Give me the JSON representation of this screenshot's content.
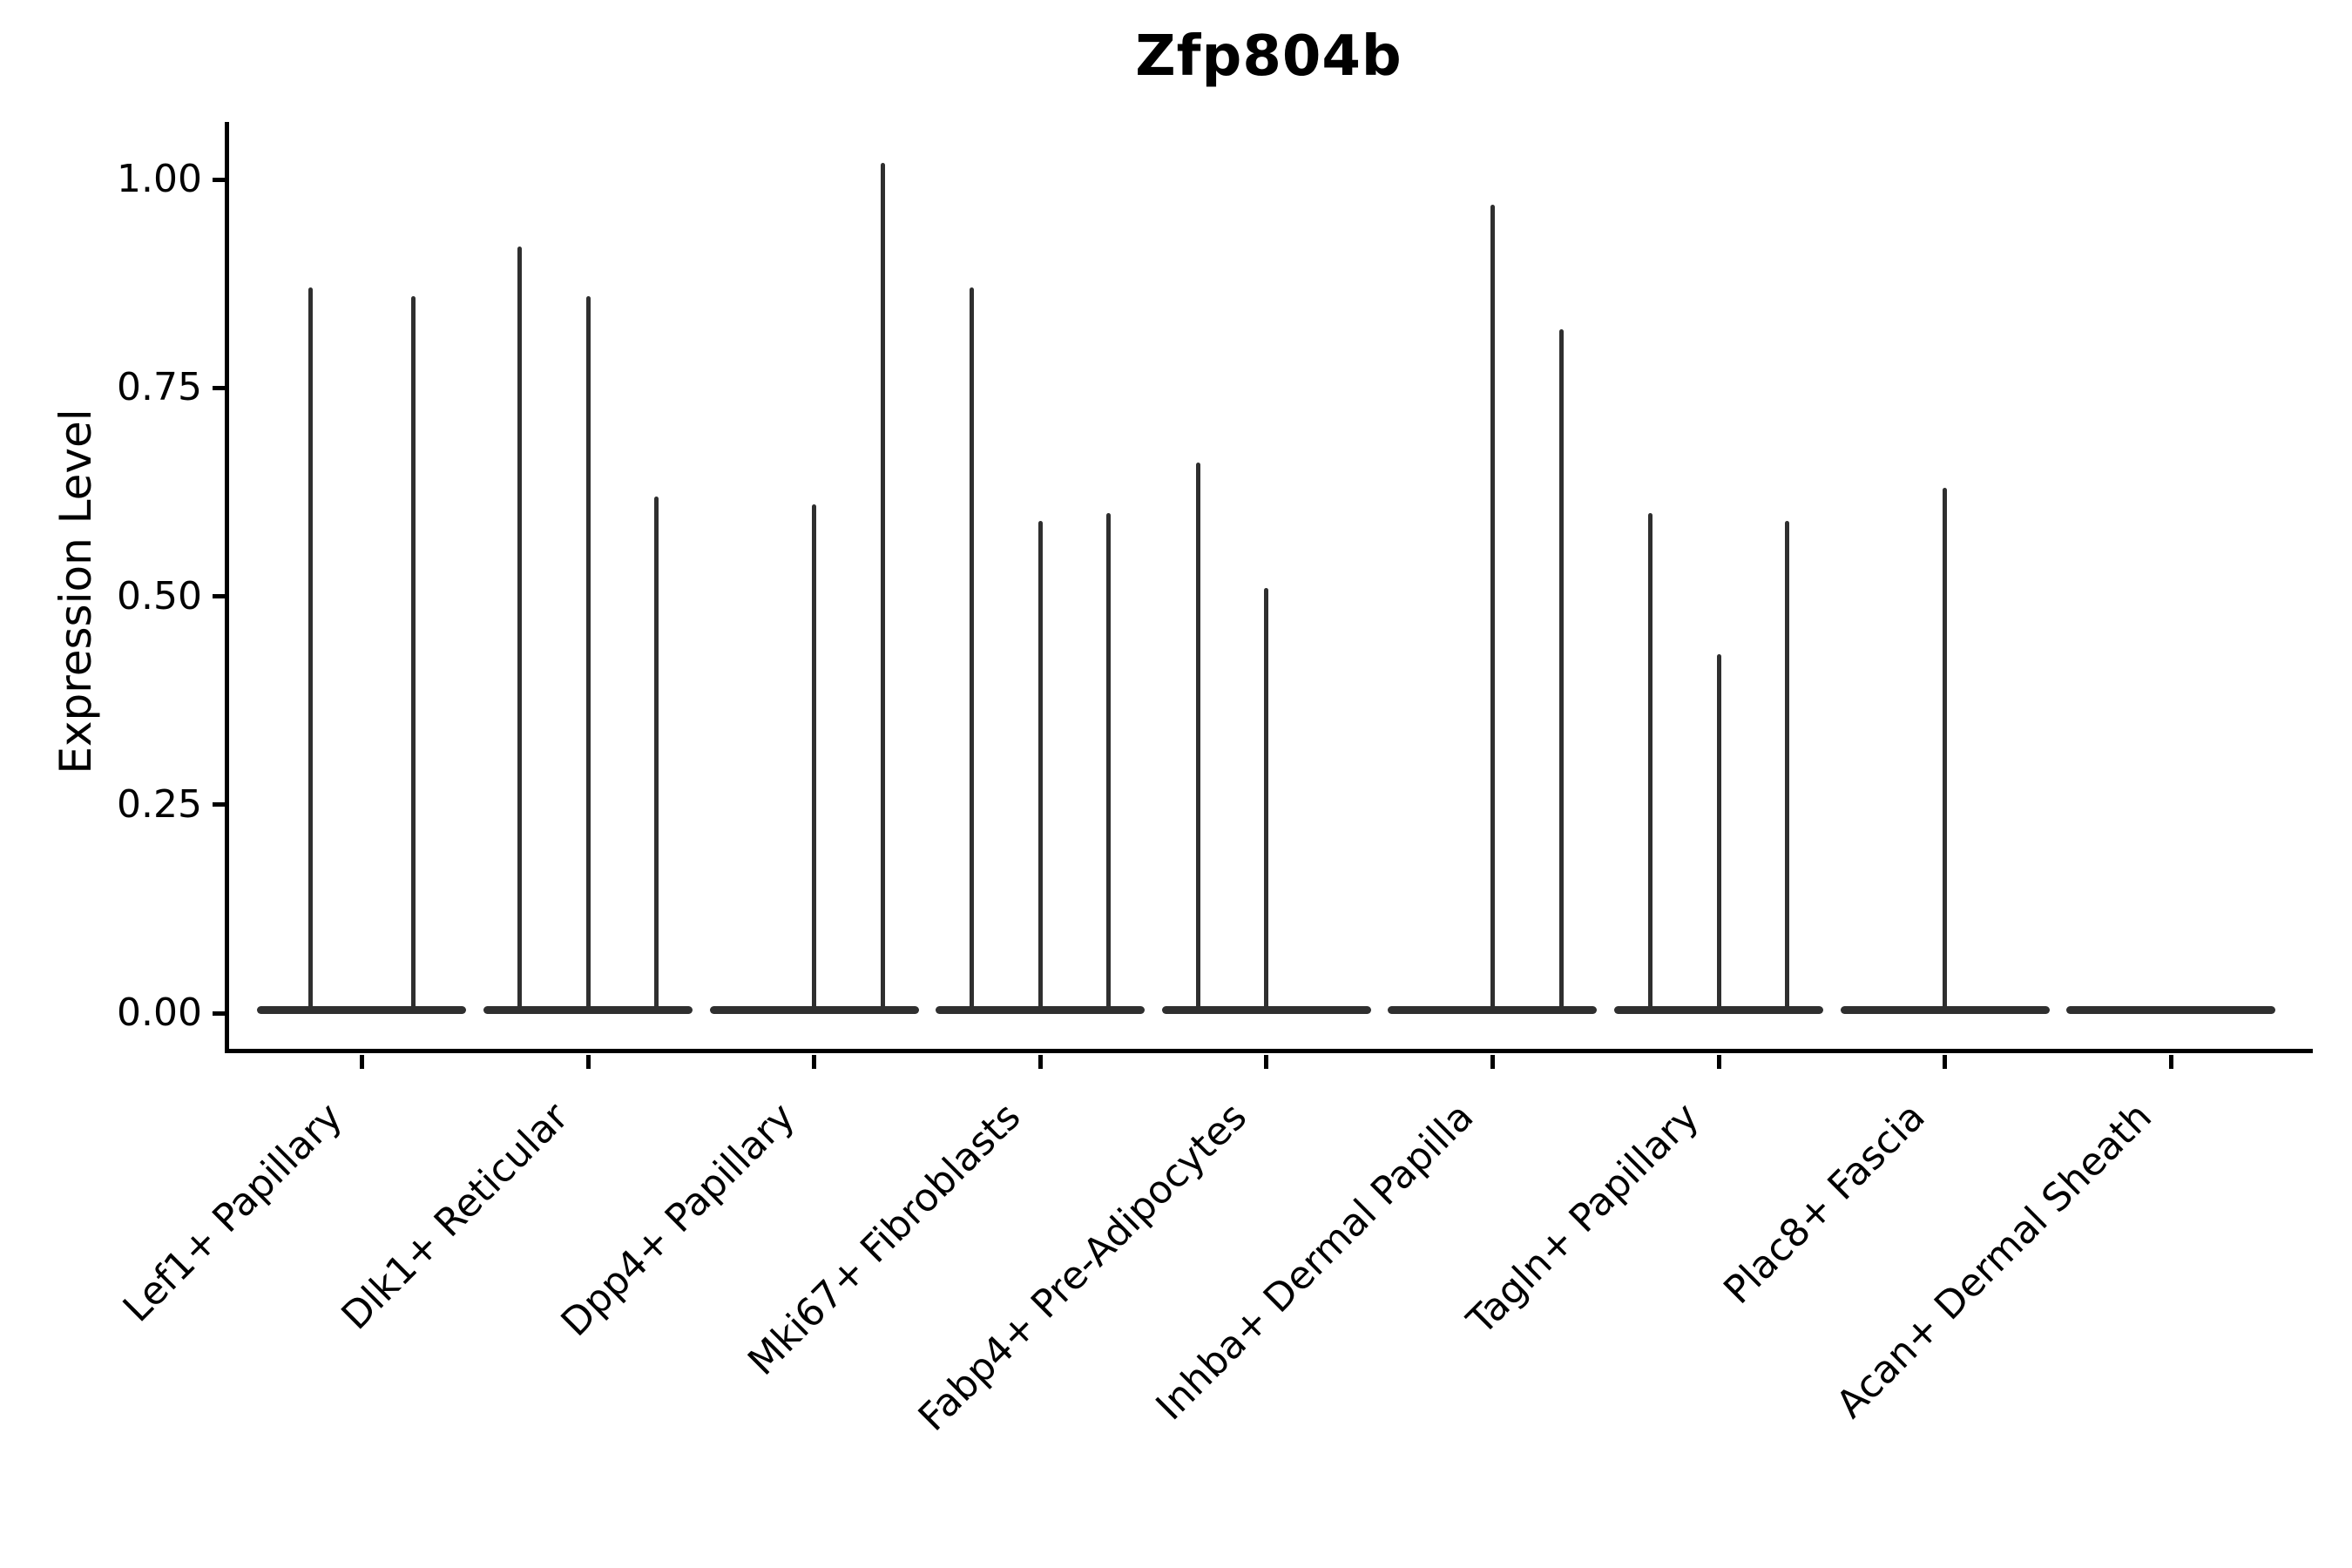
{
  "colors": {
    "ink": "#2f2f2f",
    "axis": "#000000",
    "background": "#ffffff",
    "text": "#000000"
  },
  "chart_data": {
    "type": "violin",
    "title": "Zfp804b",
    "xlabel": "",
    "ylabel": "Expression Level",
    "ylim": [
      0,
      1.07
    ],
    "grid": false,
    "legend": "none",
    "y_ticks": [
      0.0,
      0.25,
      0.5,
      0.75,
      1.0
    ],
    "y_tick_labels": [
      "0.00",
      "0.25",
      "0.50",
      "0.75",
      "1.00"
    ],
    "categories": [
      "Lef1+ Papillary",
      "Dlk1+ Reticular",
      "Dpp4+ Papillary",
      "Mki67+ Fibroblasts",
      "Fabp4+ Pre-Adipocytes",
      "Inhba+ Dermal Papilla",
      "Tagln+ Papillary",
      "Plac8+ Fascia",
      "Acan+ Dermal Sheath"
    ],
    "violins": [
      {
        "label": "Lef1+ Papillary",
        "groups": 2,
        "baseline_peak": 0,
        "needles": [
          {
            "slot": 0,
            "peak": 0.87
          },
          {
            "slot": 1,
            "peak": 0.86
          }
        ]
      },
      {
        "label": "Dlk1+ Reticular",
        "groups": 3,
        "baseline_peak": 0,
        "needles": [
          {
            "slot": 0,
            "peak": 0.92
          },
          {
            "slot": 1,
            "peak": 0.86
          },
          {
            "slot": 2,
            "peak": 0.62
          }
        ]
      },
      {
        "label": "Dpp4+ Papillary",
        "groups": 3,
        "baseline_peak": 0,
        "needles": [
          {
            "slot": 1,
            "peak": 0.61
          },
          {
            "slot": 2,
            "peak": 1.02
          }
        ]
      },
      {
        "label": "Mki67+ Fibroblasts",
        "groups": 3,
        "baseline_peak": 0,
        "needles": [
          {
            "slot": 0,
            "peak": 0.87
          },
          {
            "slot": 1,
            "peak": 0.59
          },
          {
            "slot": 2,
            "peak": 0.6
          }
        ]
      },
      {
        "label": "Fabp4+ Pre-Adipocytes",
        "groups": 3,
        "baseline_peak": 0,
        "needles": [
          {
            "slot": 0,
            "peak": 0.66
          },
          {
            "slot": 1,
            "peak": 0.51
          }
        ]
      },
      {
        "label": "Inhba+ Dermal Papilla",
        "groups": 3,
        "baseline_peak": 0,
        "needles": [
          {
            "slot": 1,
            "peak": 0.97
          },
          {
            "slot": 2,
            "peak": 0.82
          }
        ]
      },
      {
        "label": "Tagln+ Papillary",
        "groups": 3,
        "baseline_peak": 0,
        "needles": [
          {
            "slot": 0,
            "peak": 0.6
          },
          {
            "slot": 1,
            "peak": 0.43
          },
          {
            "slot": 2,
            "peak": 0.59
          }
        ]
      },
      {
        "label": "Plac8+ Fascia",
        "groups": 3,
        "baseline_peak": 0,
        "needles": [
          {
            "slot": 1,
            "peak": 0.63
          }
        ]
      },
      {
        "label": "Acan+ Dermal Sheath",
        "groups": 1,
        "baseline_peak": 0,
        "needles": []
      }
    ]
  }
}
